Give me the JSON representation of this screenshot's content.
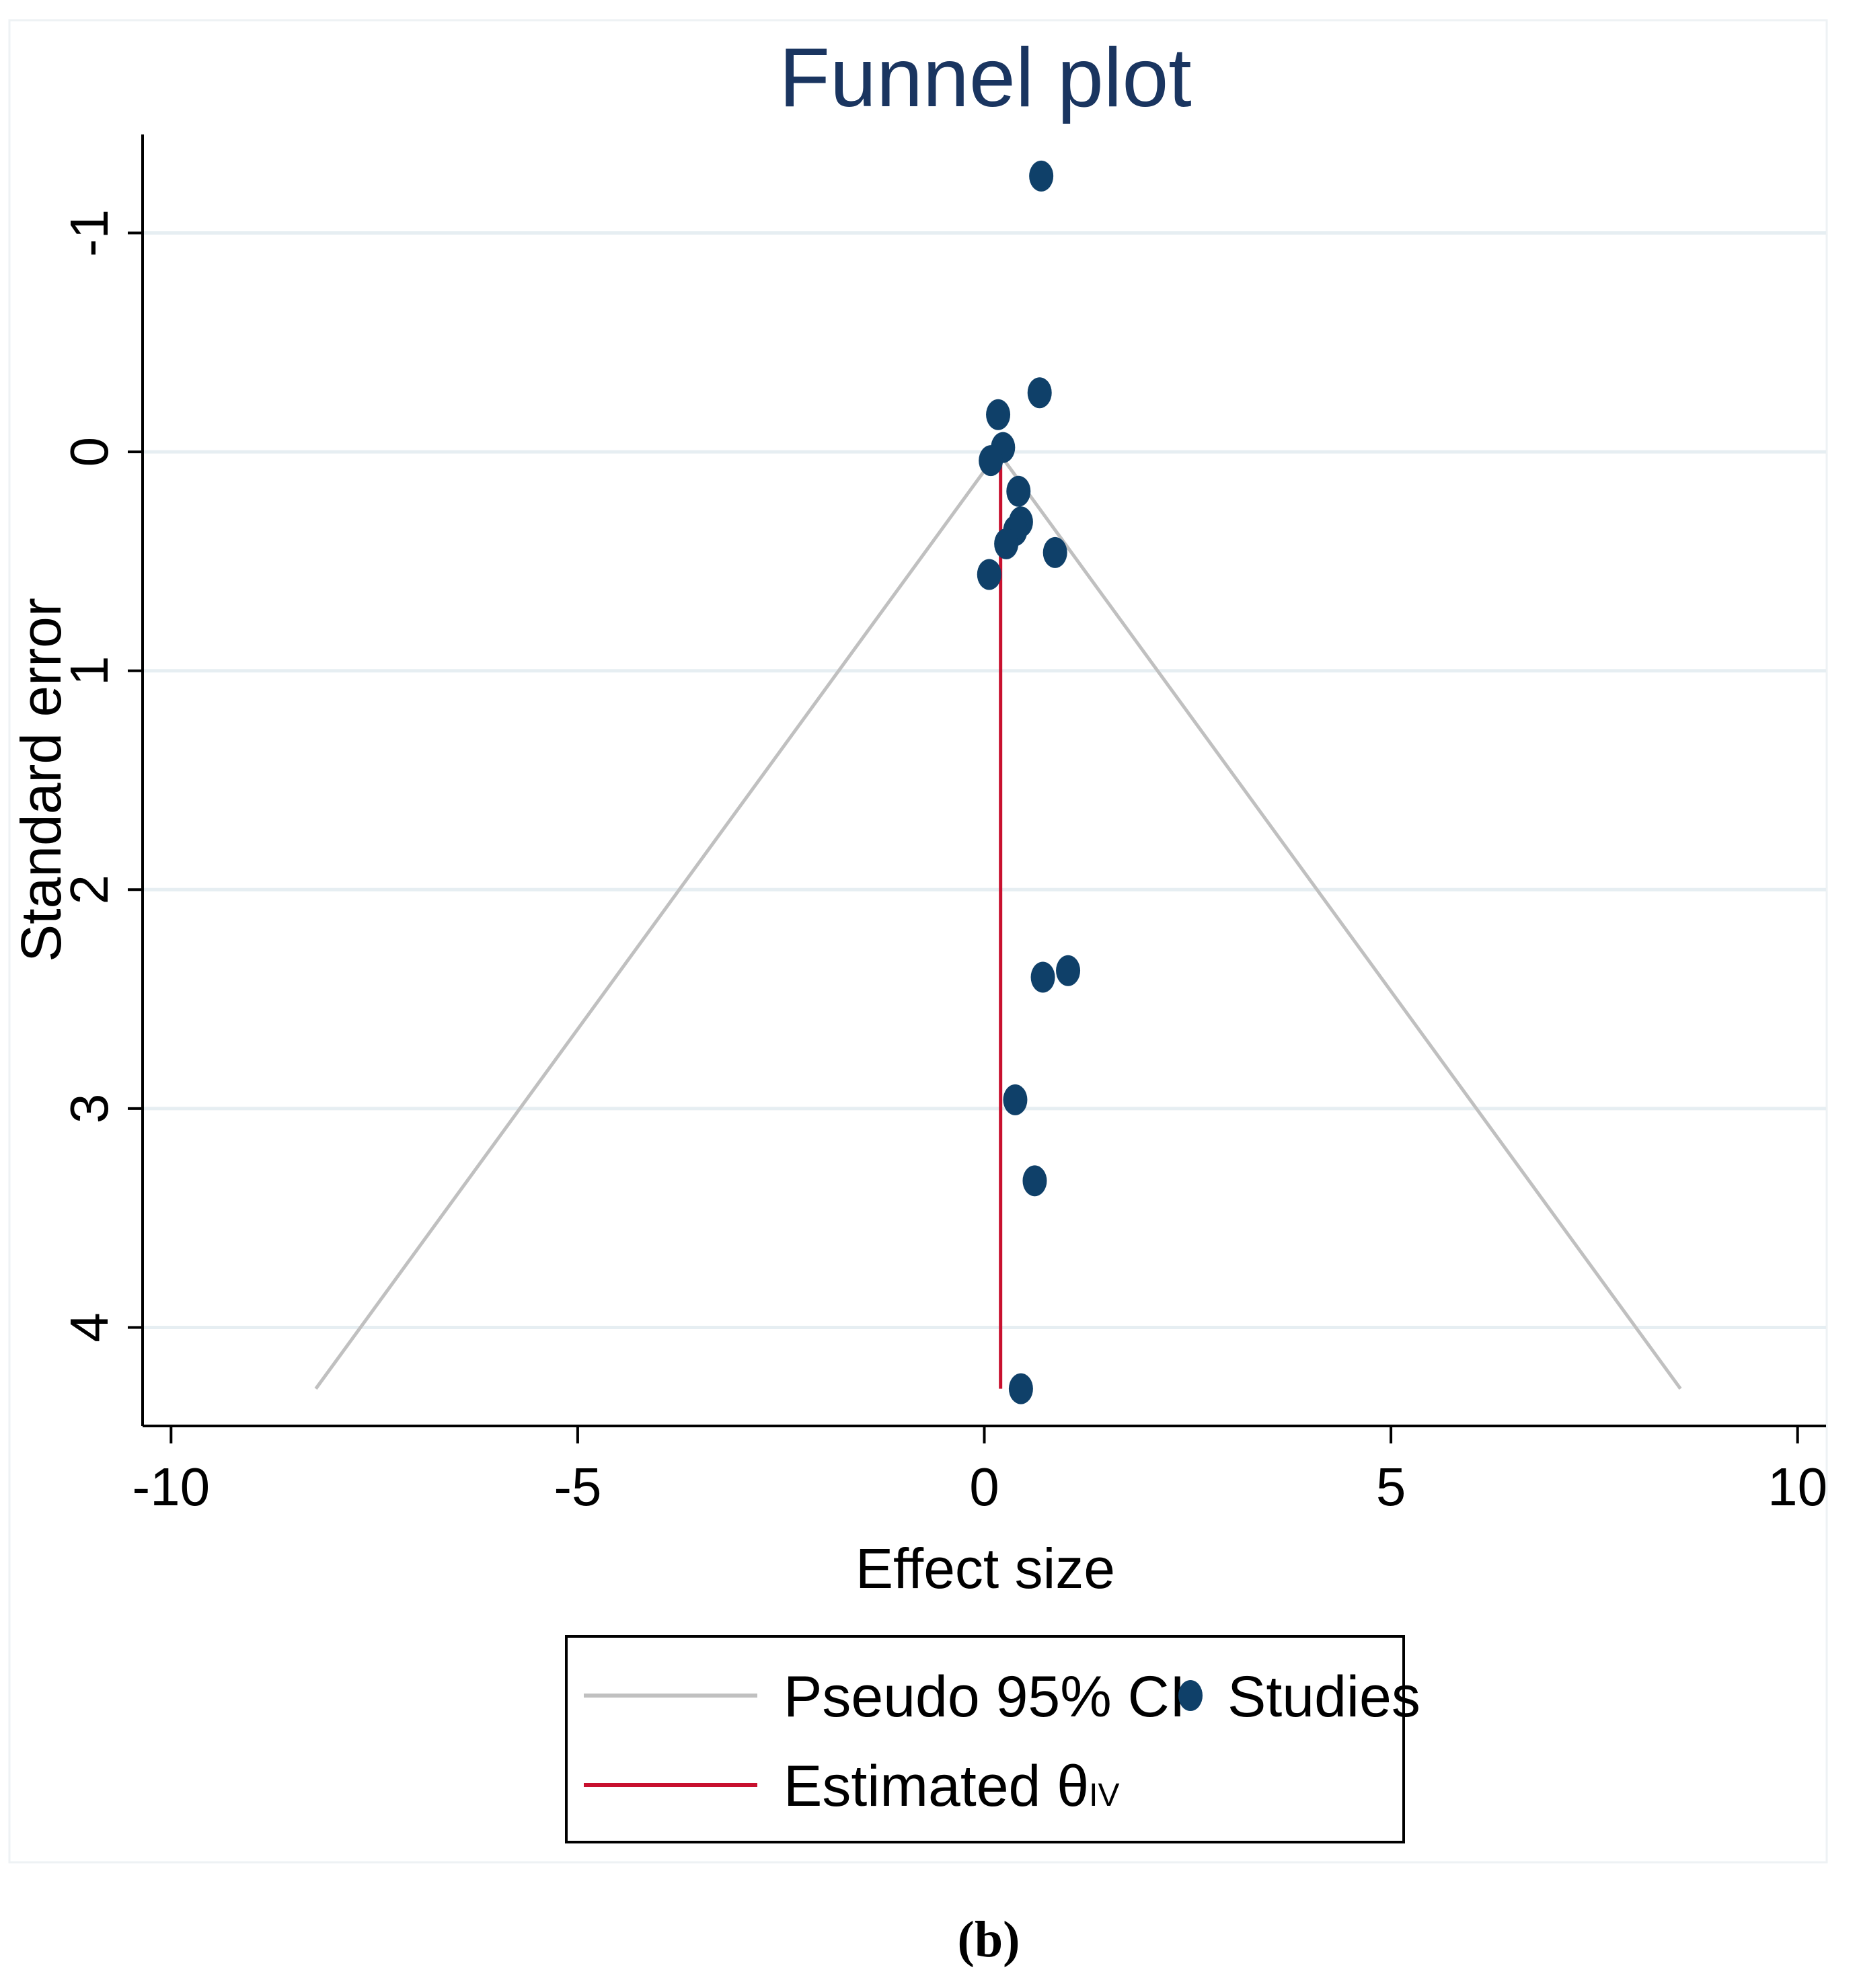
{
  "chart_data": {
    "type": "scatter",
    "title": "Funnel plot",
    "xlabel": "Effect size",
    "ylabel": "Standard error",
    "xlim": [
      -10.35,
      10.35
    ],
    "ylim": [
      -1.45,
      4.45
    ],
    "y_reversed": true,
    "x_ticks": [
      {
        "value": -10,
        "label": "-10"
      },
      {
        "value": -5,
        "label": "-5"
      },
      {
        "value": 0,
        "label": "0"
      },
      {
        "value": 5,
        "label": "5"
      },
      {
        "value": 10,
        "label": "10"
      }
    ],
    "y_ticks": [
      {
        "value": -1,
        "label": "-1"
      },
      {
        "value": 0,
        "label": "0"
      },
      {
        "value": 1,
        "label": "1"
      },
      {
        "value": 2,
        "label": "2"
      },
      {
        "value": 3,
        "label": "3"
      },
      {
        "value": 4,
        "label": "4"
      }
    ],
    "grid": true,
    "series": [
      {
        "name": "Studies",
        "kind": "scatter",
        "color": "#0f4069",
        "points": [
          {
            "x": 0.7,
            "y": -1.26
          },
          {
            "x": 0.68,
            "y": -0.27
          },
          {
            "x": 0.17,
            "y": -0.17
          },
          {
            "x": 0.23,
            "y": -0.02
          },
          {
            "x": 0.08,
            "y": 0.04
          },
          {
            "x": 0.42,
            "y": 0.18
          },
          {
            "x": 0.45,
            "y": 0.32
          },
          {
            "x": 0.38,
            "y": 0.36
          },
          {
            "x": 0.27,
            "y": 0.42
          },
          {
            "x": 0.87,
            "y": 0.46
          },
          {
            "x": 0.06,
            "y": 0.56
          },
          {
            "x": 1.03,
            "y": 2.37
          },
          {
            "x": 0.72,
            "y": 2.4
          },
          {
            "x": 0.38,
            "y": 2.96
          },
          {
            "x": 0.62,
            "y": 3.33
          },
          {
            "x": 0.45,
            "y": 4.28
          }
        ]
      },
      {
        "name": "Pseudo 95% CI",
        "kind": "line",
        "color": "#c0c0c0",
        "points": [
          {
            "x": -8.22,
            "y": 4.28
          },
          {
            "x": 0.17,
            "y": 0
          },
          {
            "x": 8.56,
            "y": 4.28
          }
        ]
      },
      {
        "name": "Estimated θIV",
        "kind": "line",
        "color": "#c8102e",
        "points": [
          {
            "x": 0.2,
            "y": 0
          },
          {
            "x": 0.2,
            "y": 4.28
          }
        ]
      }
    ],
    "legend": {
      "placement": "bottom",
      "entries": [
        {
          "label": "Pseudo 95% CI",
          "kind": "line",
          "color": "#c0c0c0"
        },
        {
          "label": "Studies",
          "kind": "marker",
          "color": "#0f4069"
        },
        {
          "label": "Estimated θ",
          "subscript": "IV",
          "kind": "line",
          "color": "#c8102e"
        }
      ]
    }
  },
  "panel_label": "(b)"
}
